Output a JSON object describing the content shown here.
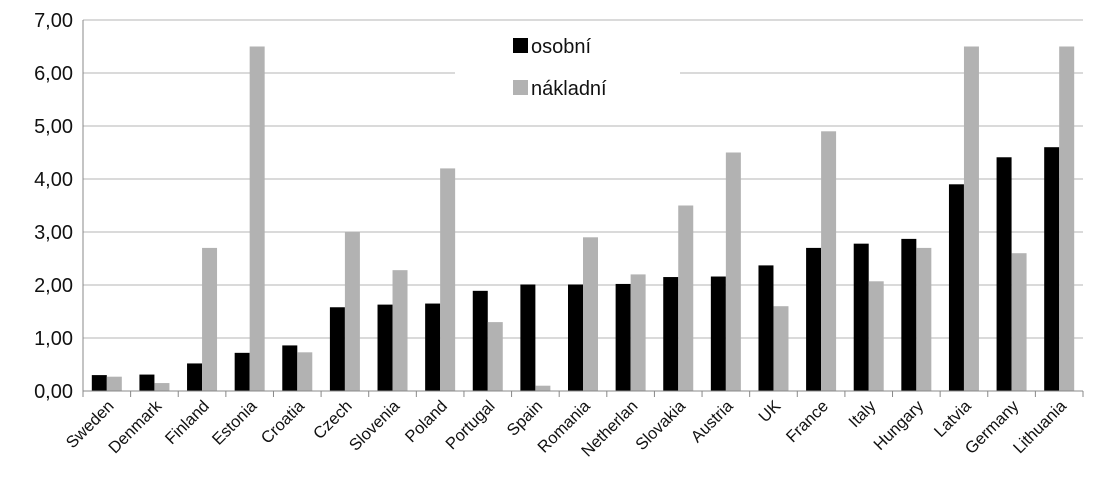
{
  "chart_data": {
    "type": "bar",
    "categories": [
      "Sweden",
      "Denmark",
      "Finland",
      "Estonia",
      "Croatia",
      "Czech",
      "Slovenia",
      "Poland",
      "Portugal",
      "Spain",
      "Romania",
      "Netherlan",
      "Slovakia",
      "Austria",
      "UK",
      "France",
      "Italy",
      "Hungary",
      "Latvia",
      "Germany",
      "Lithuania"
    ],
    "series": [
      {
        "name": "osobní",
        "color": "#000000",
        "values": [
          0.3,
          0.31,
          0.52,
          0.72,
          0.86,
          1.58,
          1.63,
          1.65,
          1.89,
          2.01,
          2.01,
          2.02,
          2.15,
          2.16,
          2.37,
          2.7,
          2.78,
          2.87,
          3.9,
          4.41,
          4.6
        ]
      },
      {
        "name": "nákladní",
        "color": "#b2b2b2",
        "values": [
          0.27,
          0.15,
          2.7,
          6.5,
          0.73,
          3.0,
          2.28,
          4.2,
          1.3,
          0.1,
          2.9,
          2.2,
          3.5,
          4.5,
          1.6,
          4.9,
          2.07,
          2.7,
          6.5,
          2.6,
          6.5
        ]
      }
    ],
    "yticks": [
      "0,00",
      "1,00",
      "2,00",
      "3,00",
      "4,00",
      "5,00",
      "6,00",
      "7,00"
    ],
    "ylim": [
      0,
      7
    ],
    "grid": true,
    "legend_position": "top-center"
  }
}
